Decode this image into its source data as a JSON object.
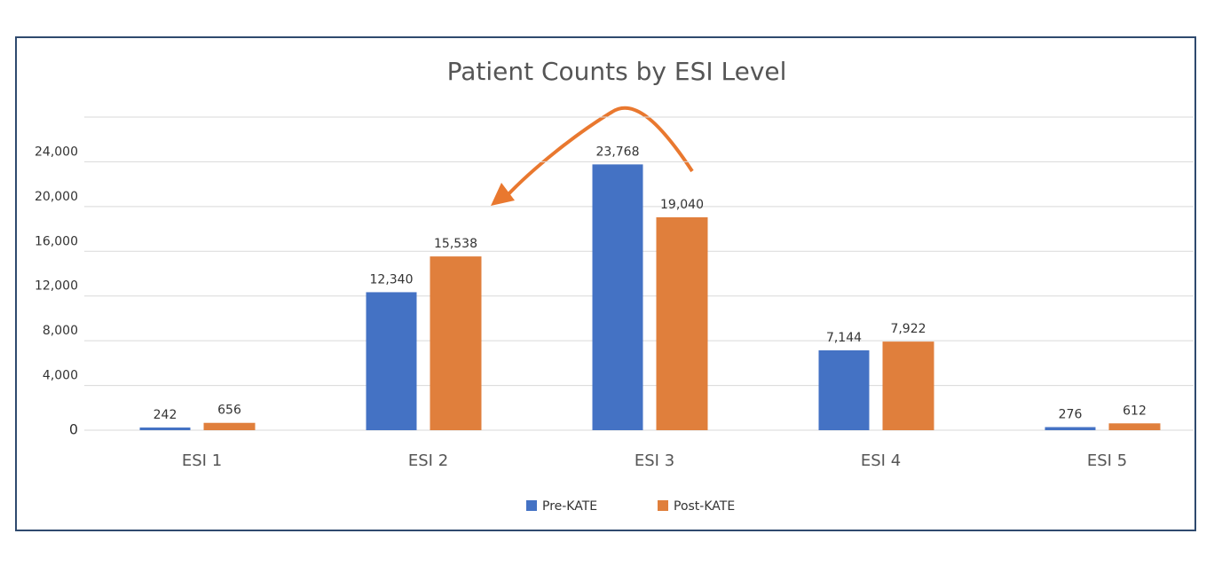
{
  "chart_data": {
    "type": "bar",
    "title": "Patient Counts by ESI Level",
    "categories": [
      "ESI 1",
      "ESI 2",
      "ESI 3",
      "ESI 4",
      "ESI 5"
    ],
    "series": [
      {
        "name": "Pre-KATE",
        "color": "#4472c4",
        "values": [
          242,
          12340,
          23768,
          7144,
          276
        ],
        "value_labels": [
          "242",
          "12,340",
          "23,768",
          "7,144",
          "276"
        ]
      },
      {
        "name": "Post-KATE",
        "color": "#e07f3c",
        "values": [
          656,
          15538,
          19040,
          7922,
          612
        ],
        "value_labels": [
          "656",
          "15,538",
          "19,040",
          "7,922",
          "612"
        ]
      }
    ],
    "ylim": [
      0,
      28000
    ],
    "yticks": [
      0,
      {
        "value": 4000,
        "label": "4,000"
      },
      {
        "value": 8000,
        "label": "8,000"
      },
      {
        "value": 12000,
        "label": "12,000"
      },
      {
        "value": 16000,
        "label": "16,000"
      },
      {
        "value": 20000,
        "label": "20,000"
      },
      {
        "value": 24000,
        "label": "24,000"
      }
    ],
    "grid": true,
    "legend": "bottom"
  }
}
